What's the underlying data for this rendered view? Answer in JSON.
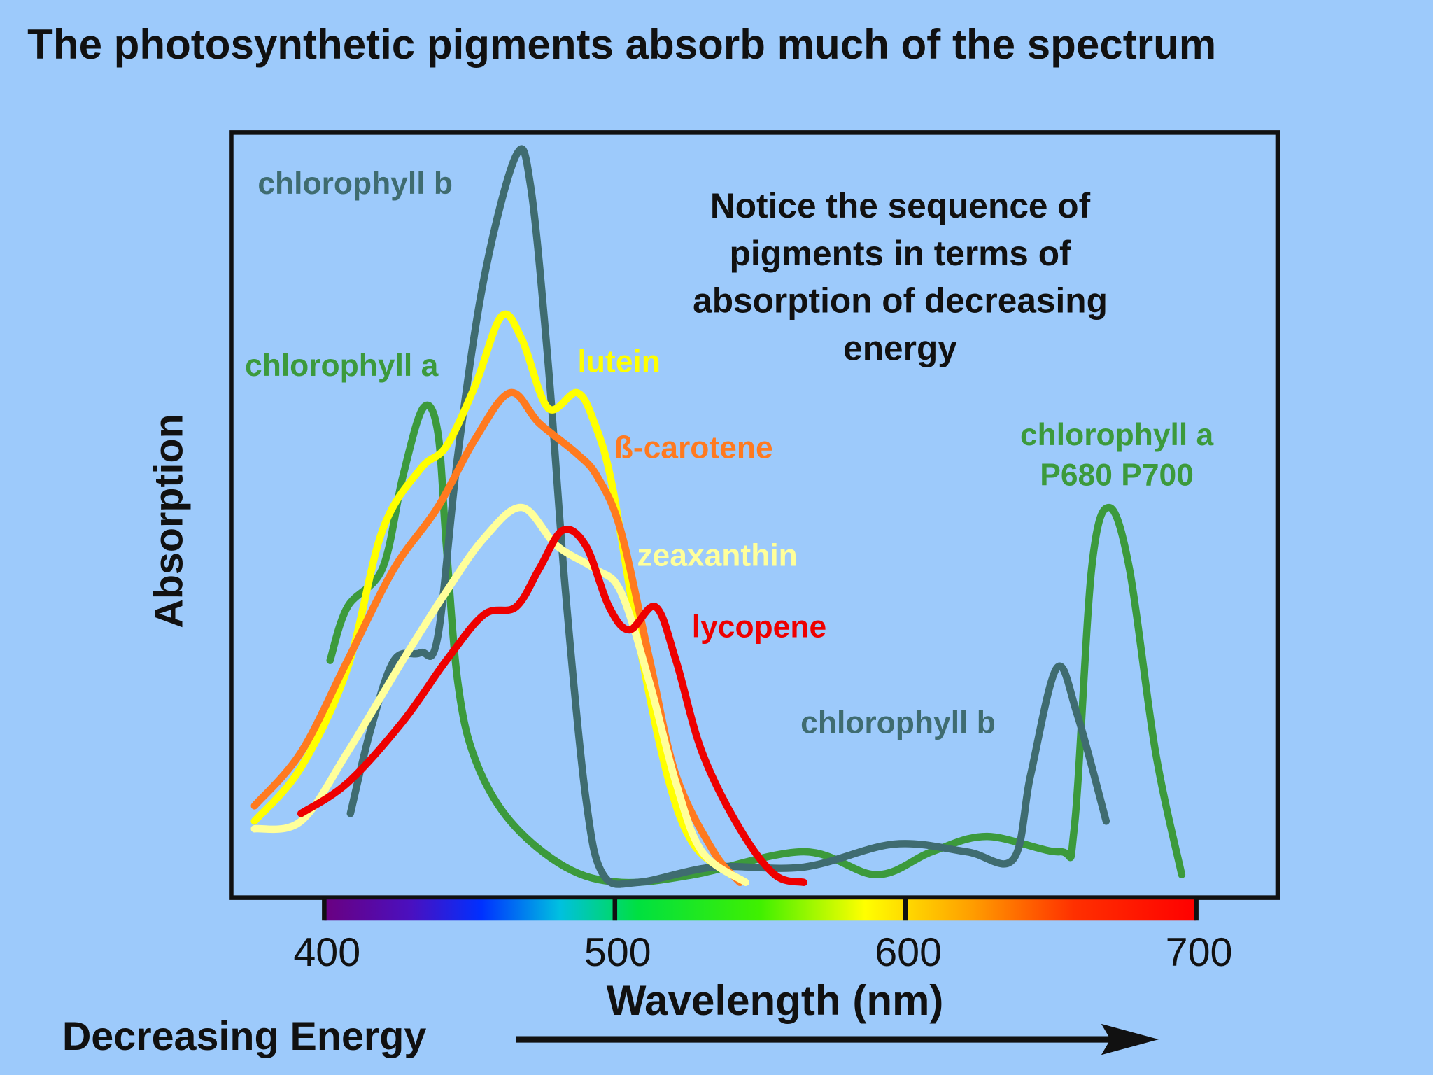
{
  "chart_data": {
    "type": "line",
    "title": "The photosynthetic pigments absorb much of the spectrum",
    "xlabel": "Wavelength (nm)",
    "ylabel": "Absorption",
    "energy_label": "Decreasing Energy",
    "note": [
      "Notice the sequence of",
      "pigments in terms of",
      "absorption of decreasing",
      "energy"
    ],
    "xlim": [
      368,
      728
    ],
    "xticks": [
      400,
      500,
      600,
      700
    ],
    "ylim": [
      0,
      100
    ],
    "series": [
      {
        "name": "chlorophyll a",
        "color": "#3c9a3c",
        "x": [
          402,
          408,
          420,
          427,
          434,
          439,
          442,
          446,
          452,
          464,
          483,
          502,
          527,
          565,
          590,
          609,
          628,
          653,
          658,
          664,
          670,
          677,
          686,
          695
        ],
        "values": [
          31,
          38,
          43,
          55,
          64,
          61,
          46,
          28,
          18,
          10,
          4,
          2,
          3,
          6,
          3,
          6,
          8,
          6,
          9,
          43,
          51,
          43,
          19,
          3
        ]
      },
      {
        "name": "chlorophyll b",
        "color": "#3f6c70",
        "x": [
          409,
          416,
          424,
          433,
          439,
          446,
          455,
          466,
          471,
          477,
          483,
          490,
          496,
          508,
          534,
          565,
          596,
          621,
          637,
          643,
          652,
          659,
          669
        ],
        "values": [
          11,
          22,
          31,
          32,
          34,
          58,
          81,
          97,
          93,
          70,
          40,
          13,
          3,
          2,
          4,
          4,
          7,
          6,
          5,
          16,
          30,
          24,
          10
        ]
      },
      {
        "name": "lutein",
        "color": "#ffff00",
        "x": [
          376,
          392,
          408,
          420,
          433,
          442,
          452,
          461,
          468,
          477,
          487,
          493,
          499,
          508,
          518,
          527,
          540
        ],
        "values": [
          10,
          17,
          30,
          48,
          56,
          59,
          67,
          76,
          73,
          64,
          66,
          62,
          54,
          34,
          16,
          7,
          3
        ]
      },
      {
        "name": "ß-carotene",
        "color": "#ff7a1f",
        "x": [
          376,
          392,
          408,
          424,
          439,
          452,
          464,
          474,
          487,
          494,
          502,
          512,
          521,
          534,
          543
        ],
        "values": [
          12,
          19,
          31,
          43,
          51,
          60,
          66,
          62,
          58,
          55,
          48,
          31,
          16,
          6,
          2
        ]
      },
      {
        "name": "zeaxanthin",
        "color": "#ffff9a",
        "x": [
          376,
          392,
          408,
          427,
          442,
          455,
          468,
          480,
          493,
          502,
          512,
          521,
          530,
          545
        ],
        "values": [
          9,
          10,
          19,
          31,
          40,
          47,
          51,
          46,
          43,
          40,
          28,
          15,
          6,
          2
        ]
      },
      {
        "name": "lycopene",
        "color": "#ee0000",
        "x": [
          392,
          408,
          427,
          442,
          455,
          466,
          474,
          482,
          490,
          498,
          505,
          514,
          521,
          530,
          543,
          555,
          565
        ],
        "values": [
          11,
          15,
          23,
          31,
          37,
          38,
          43,
          48,
          46,
          38,
          35,
          38,
          31,
          19,
          9,
          3,
          2
        ]
      }
    ],
    "annotations": [
      "chlorophyll b",
      "chlorophyll a",
      "P680 P700"
    ]
  }
}
